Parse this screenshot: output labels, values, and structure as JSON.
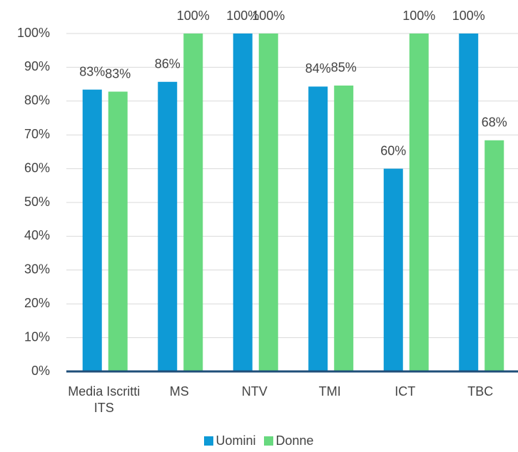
{
  "chart_data": {
    "type": "bar",
    "categories": [
      "Media Iscritti ITS",
      "MS",
      "NTV",
      "TMI",
      "ICT",
      "TBC"
    ],
    "series": [
      {
        "name": "Uomini",
        "color": "#0e9ad6",
        "values": [
          83.4,
          85.7,
          100,
          84.3,
          60,
          100
        ],
        "value_labels": [
          "83%",
          "86%",
          "100%",
          "84%",
          "60%",
          "100%"
        ]
      },
      {
        "name": "Donne",
        "color": "#68d97f",
        "values": [
          82.8,
          100,
          100,
          84.6,
          100,
          68.4
        ],
        "value_labels": [
          "83%",
          "100%",
          "100%",
          "85%",
          "100%",
          "68%"
        ]
      }
    ],
    "ylim": [
      0,
      100
    ],
    "yticks": [
      {
        "value": 0,
        "label": "0%"
      },
      {
        "value": 10,
        "label": "10%"
      },
      {
        "value": 20,
        "label": "20%"
      },
      {
        "value": 30,
        "label": "30%"
      },
      {
        "value": 40,
        "label": "40%"
      },
      {
        "value": 50,
        "label": "50%"
      },
      {
        "value": 60,
        "label": "60%"
      },
      {
        "value": 70,
        "label": "70%"
      },
      {
        "value": 80,
        "label": "80%"
      },
      {
        "value": 90,
        "label": "90%"
      },
      {
        "value": 100,
        "label": "100%"
      }
    ],
    "grid": true,
    "legend": "bottom"
  }
}
